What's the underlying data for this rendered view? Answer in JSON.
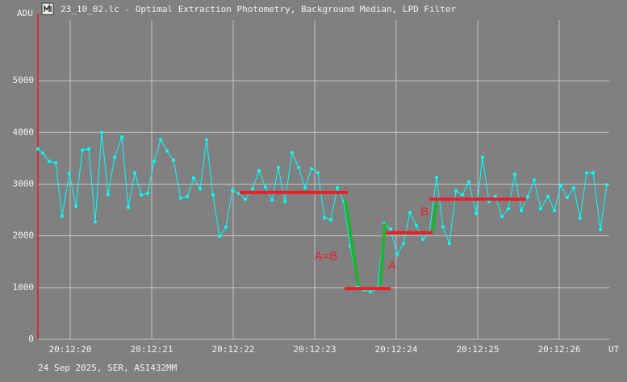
{
  "chart_data": {
    "type": "line",
    "title": "23_10_02.lc - Optimal Extraction Photometry, Background Median, LPD Filter",
    "y_label": "ADU",
    "x_label": "UT",
    "caption": "24 Sep 2025, SER, ASI432MM",
    "grid": true,
    "xlim": [
      19.604,
      26.614
    ],
    "ylim": [
      0,
      6170
    ],
    "yticks": [
      0,
      1000,
      2000,
      3000,
      4000,
      5000
    ],
    "xticks": [
      {
        "value": 20,
        "label": "20:12:20"
      },
      {
        "value": 21,
        "label": "20:12:21"
      },
      {
        "value": 22,
        "label": "20:12:22"
      },
      {
        "value": 23,
        "label": "20:12:23"
      },
      {
        "value": 24,
        "label": "20:12:24"
      },
      {
        "value": 25,
        "label": "20:12:25"
      },
      {
        "value": 26,
        "label": "20:12:26"
      }
    ],
    "series": [
      {
        "color": "#00ffff",
        "x": [
          19.604,
          19.663,
          19.743,
          19.822,
          19.901,
          19.99,
          20.069,
          20.149,
          20.228,
          20.307,
          20.386,
          20.465,
          20.545,
          20.634,
          20.713,
          20.792,
          20.871,
          20.95,
          21.03,
          21.109,
          21.188,
          21.267,
          21.356,
          21.436,
          21.515,
          21.594,
          21.673,
          21.752,
          21.832,
          21.911,
          21.99,
          22.069,
          22.149,
          22.238,
          22.317,
          22.396,
          22.475,
          22.554,
          22.634,
          22.723,
          22.802,
          22.881,
          22.96,
          23.04,
          23.119,
          23.198,
          23.277,
          23.356,
          23.436,
          23.525,
          23.604,
          23.683,
          23.772,
          23.851,
          23.931,
          24.01,
          24.089,
          24.168,
          24.248,
          24.327,
          24.406,
          24.495,
          24.574,
          24.653,
          24.733,
          24.812,
          24.891,
          24.98,
          25.059,
          25.139,
          25.218,
          25.297,
          25.376,
          25.455,
          25.535,
          25.614,
          25.693,
          25.772,
          25.861,
          25.941,
          26.02,
          26.099,
          26.178,
          26.257,
          26.337,
          26.416,
          26.505,
          26.584
        ],
        "values": [
          3680,
          3600,
          3440,
          3410,
          2380,
          3210,
          2570,
          3660,
          3680,
          2270,
          4000,
          2800,
          3520,
          3910,
          2550,
          3220,
          2790,
          2820,
          3440,
          3860,
          3640,
          3460,
          2730,
          2760,
          3120,
          2910,
          3860,
          2790,
          1990,
          2170,
          2880,
          2820,
          2710,
          2910,
          3260,
          2940,
          2690,
          3320,
          2660,
          3610,
          3320,
          2930,
          3300,
          3220,
          2350,
          2310,
          2930,
          2660,
          1810,
          1030,
          950,
          920,
          980,
          2240,
          2130,
          1640,
          1850,
          2450,
          2200,
          1930,
          2060,
          3130,
          2170,
          1850,
          2870,
          2790,
          3040,
          2430,
          3520,
          2660,
          2760,
          2370,
          2520,
          3190,
          2490,
          2760,
          3080,
          2520,
          2760,
          2490,
          2980,
          2740,
          2930,
          2340,
          3220,
          3220,
          2120,
          2990
        ]
      }
    ],
    "lines": [
      {
        "color": "#e8202a",
        "x1": 22.079,
        "x2": 23.406,
        "y1": 2840,
        "y2": 2840
      },
      {
        "color": "#e8202a",
        "x1": 23.366,
        "x2": 23.931,
        "y1": 980,
        "y2": 980
      },
      {
        "color": "#e8202a",
        "x1": 23.832,
        "x2": 24.446,
        "y1": 2060,
        "y2": 2060
      },
      {
        "color": "#e8202a",
        "x1": 24.406,
        "x2": 25.594,
        "y1": 2710,
        "y2": 2710
      },
      {
        "color": "#22b030",
        "x1": 23.376,
        "x2": 23.535,
        "y1": 2690,
        "y2": 1030
      },
      {
        "color": "#22b030",
        "x1": 23.802,
        "x2": 23.861,
        "y1": 1030,
        "y2": 2240
      },
      {
        "color": "#22b030",
        "x1": 24.446,
        "x2": 24.495,
        "y1": 2090,
        "y2": 2660
      }
    ],
    "annotations": [
      {
        "text": "A=B",
        "x": 23.139,
        "y": 1600,
        "color": "#e8202a"
      },
      {
        "text": "A",
        "x": 23.95,
        "y": 1420,
        "color": "#e8202a"
      },
      {
        "text": "B",
        "x": 24.347,
        "y": 2450,
        "color": "#e8202a"
      }
    ]
  }
}
